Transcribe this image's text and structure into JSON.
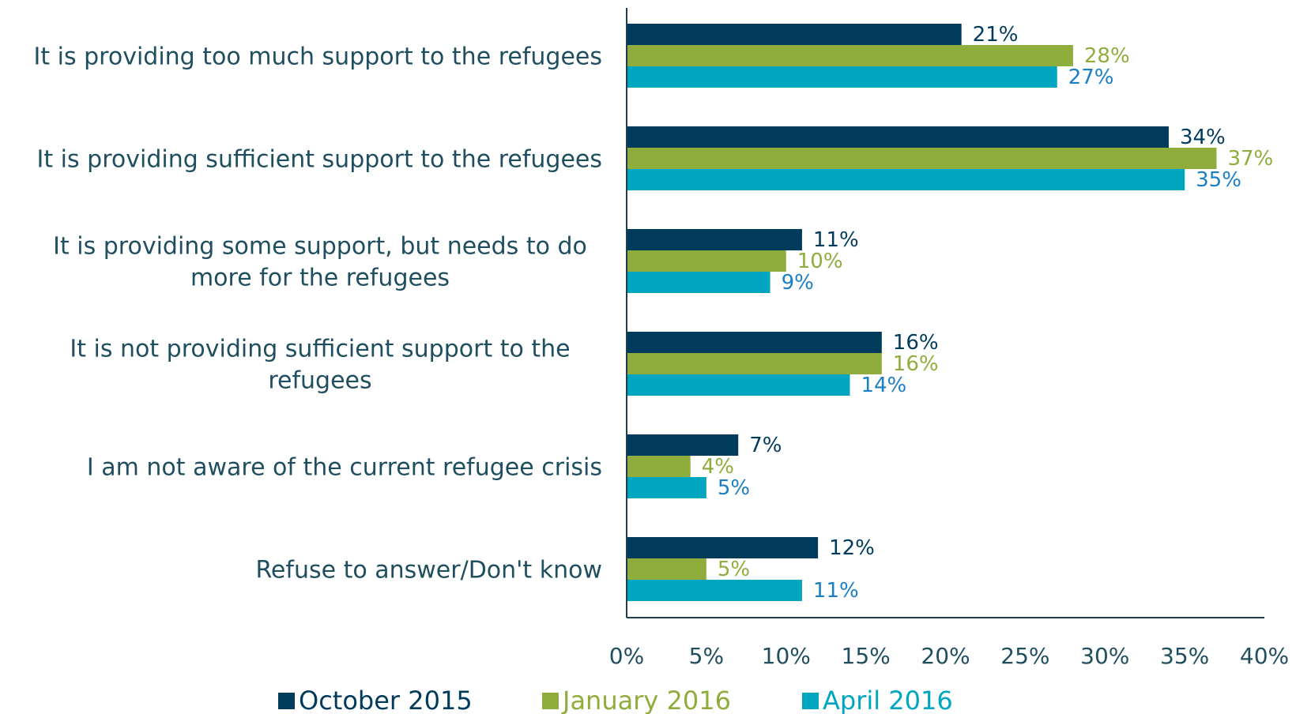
{
  "chart_data": {
    "type": "bar",
    "orientation": "horizontal",
    "categories": [
      [
        "It is providing too much support to the refugees"
      ],
      [
        "It is providing sufficient support to the refugees"
      ],
      [
        "It is providing some support, but needs to do",
        "more for the refugees"
      ],
      [
        "It is not providing sufficient support to the",
        "refugees"
      ],
      [
        "I am not aware of the current refugee crisis"
      ],
      [
        "Refuse to answer/Don't know"
      ]
    ],
    "series": [
      {
        "name": "October 2015",
        "color": "#003b5c",
        "label_color": "#003b5c",
        "values": [
          21,
          34,
          11,
          16,
          7,
          12
        ]
      },
      {
        "name": "January 2016",
        "color": "#8fad3c",
        "label_color": "#8fad3c",
        "values": [
          28,
          37,
          10,
          16,
          4,
          5
        ]
      },
      {
        "name": "April 2016",
        "color": "#00a5c0",
        "label_color": "#1a7fc4",
        "values": [
          27,
          35,
          9,
          14,
          5,
          11
        ]
      }
    ],
    "xlim": [
      0,
      40
    ],
    "ticks": [
      "0%",
      "5%",
      "10%",
      "15%",
      "20%",
      "25%",
      "30%",
      "35%",
      "40%"
    ],
    "tick_values": [
      0,
      5,
      10,
      15,
      20,
      25,
      30,
      35,
      40
    ],
    "value_suffix": "%",
    "legend_position": "bottom",
    "grid": false
  }
}
